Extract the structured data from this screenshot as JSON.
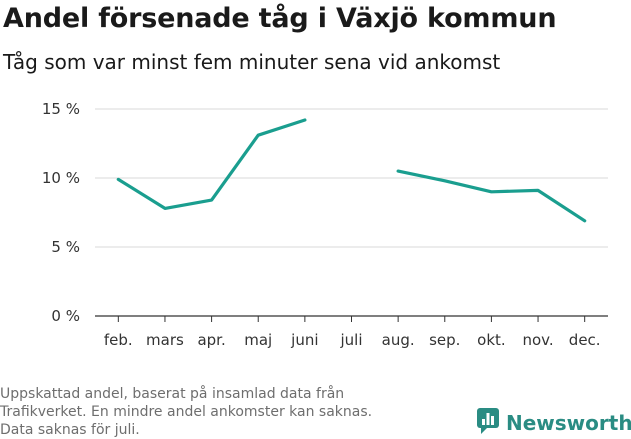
{
  "header": {
    "title": "Andel försenade tåg i Växjö kommun",
    "subtitle": "Tåg som var minst fem minuter sena vid ankomst"
  },
  "footnote": {
    "lines": [
      "Uppskattad andel, baserat på insamlad data från",
      "Trafikverket. En mindre andel ankomster kan saknas.",
      "Data saknas för juli."
    ]
  },
  "brand": {
    "name": "Newsworthy",
    "icon": "newsworthy-logo-icon",
    "color": "#2a8c83"
  },
  "chart_data": {
    "type": "line",
    "title": "Andel försenade tåg i Växjö kommun",
    "subtitle": "Tåg som var minst fem minuter sena vid ankomst",
    "categories": [
      "feb.",
      "mars",
      "apr.",
      "maj",
      "juni",
      "juli",
      "aug.",
      "sep.",
      "okt.",
      "nov.",
      "dec."
    ],
    "series": [
      {
        "values": [
          9.9,
          7.8,
          8.4,
          13.1,
          14.2,
          null,
          10.5,
          9.8,
          9.0,
          9.1,
          6.9
        ],
        "color": "#1a9e8f"
      }
    ],
    "ylim": [
      0,
      15
    ],
    "yticks": [
      0,
      5,
      10,
      15
    ],
    "ytick_labels": [
      "0 %",
      "5 %",
      "10 %",
      "15 %"
    ],
    "grid": true,
    "gridColor": "#d9d9d9",
    "axisColor": "#333333"
  }
}
